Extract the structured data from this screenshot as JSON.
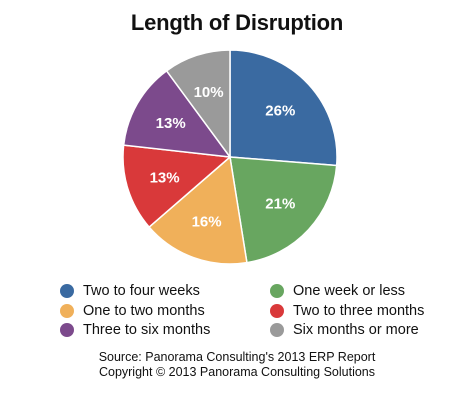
{
  "chart_data": {
    "type": "pie",
    "title": "Length of Disruption",
    "slices": [
      {
        "label": "Two to four weeks",
        "value": 26,
        "display": "26%",
        "color": "#3a6aa1"
      },
      {
        "label": "One week or less",
        "value": 21,
        "display": "21%",
        "color": "#68a660"
      },
      {
        "label": "One to two months",
        "value": 16,
        "display": "16%",
        "color": "#f0b05a"
      },
      {
        "label": "Two to three months",
        "value": 13,
        "display": "13%",
        "color": "#d9393a"
      },
      {
        "label": "Three to six months",
        "value": 13,
        "display": "13%",
        "color": "#7c4a8c"
      },
      {
        "label": "Six months or more",
        "value": 10,
        "display": "10%",
        "color": "#9a9a9a"
      }
    ],
    "legend_order": [
      "Two to four weeks",
      "One week or less",
      "One to two months",
      "Two to three months",
      "Three to six months",
      "Six months or more"
    ],
    "legend_placement": "bottom",
    "start_angle": "12 o'clock",
    "direction": "clockwise"
  },
  "source": {
    "line1": "Source: Panorama Consulting's 2013 ERP Report",
    "line2": "Copyright © 2013 Panorama Consulting Solutions"
  }
}
